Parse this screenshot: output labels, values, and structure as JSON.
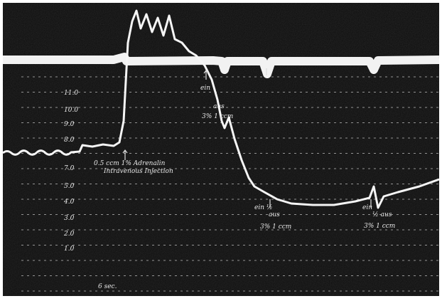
{
  "scale_labels": [
    "11.0",
    "10.0",
    "9.0",
    "8.0",
    "7.0",
    "5.0",
    "4.0",
    "3.0",
    "2.0",
    "1.0"
  ],
  "annotations": {
    "injection": {
      "line1": "0.5 ccm 1% Adrenalin",
      "line2": "Intravenous Injection"
    },
    "first": {
      "on": "ein",
      "off": "aus",
      "dose": "3% 1 ccm"
    },
    "second": {
      "on": "ein ½",
      "off": "aus",
      "dose": "3% 1 ccm"
    },
    "third": {
      "on": "ein",
      "off": "½ aus",
      "dose": "3% 1 ccm"
    },
    "time": "6 sec."
  }
}
